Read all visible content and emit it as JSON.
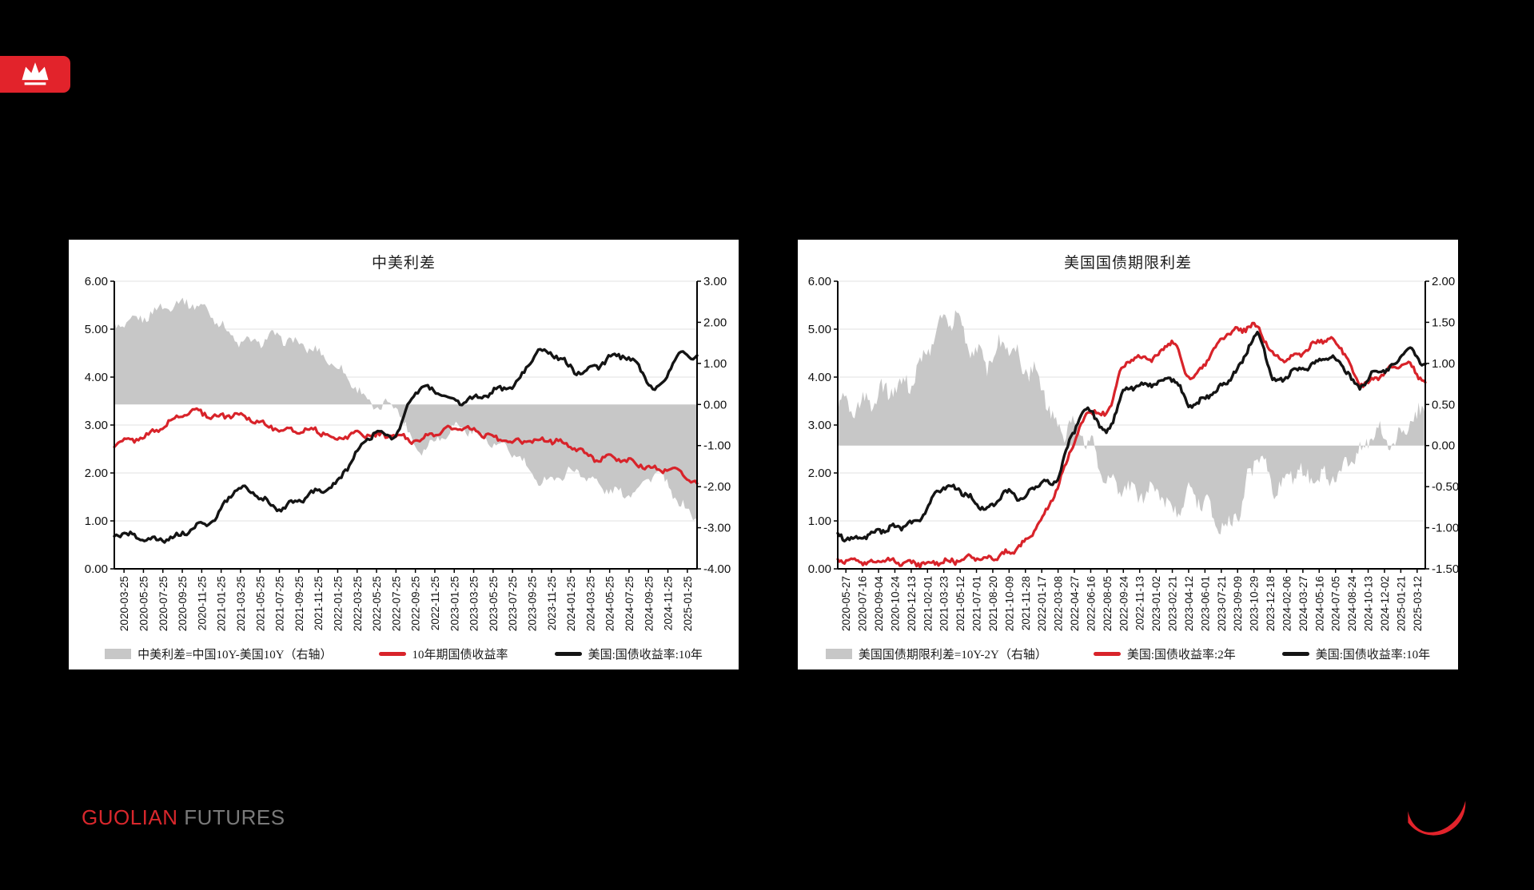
{
  "page": {
    "background": "#000000"
  },
  "colors": {
    "red": "#d8232a",
    "black": "#141414",
    "gray": "#c7c7c7",
    "grid": "#ebebeb",
    "axis": "#000000",
    "panel_bg": "#ffffff",
    "logo_red": "#e2232b",
    "brand_red": "#d8272c",
    "brand_gray": "#7a7a7a"
  },
  "header": {
    "logo": "crown-badge"
  },
  "footer": {
    "brand_primary": "GUOLIAN",
    "brand_secondary": "FUTURES"
  },
  "chart_data": [
    {
      "type": "line+area",
      "title": "中美利差",
      "grid": "horizontal",
      "legend_position": "bottom",
      "x_labels": [
        "2020-03-25",
        "2020-05-25",
        "2020-07-25",
        "2020-09-25",
        "2020-11-25",
        "2021-01-25",
        "2021-03-25",
        "2021-05-25",
        "2021-07-25",
        "2021-09-25",
        "2021-11-25",
        "2022-01-25",
        "2022-03-25",
        "2022-05-25",
        "2022-07-25",
        "2022-09-25",
        "2022-11-25",
        "2023-01-25",
        "2023-03-25",
        "2023-05-25",
        "2023-07-25",
        "2023-09-25",
        "2023-11-25",
        "2024-01-25",
        "2024-03-25",
        "2024-05-25",
        "2024-07-25",
        "2024-09-25",
        "2024-11-25",
        "2025-01-25"
      ],
      "left_axis": {
        "min": 0,
        "max": 6,
        "ticks": [
          "6.00",
          "5.00",
          "4.00",
          "3.00",
          "2.00",
          "1.00",
          "0.00"
        ]
      },
      "right_axis": {
        "min": -4,
        "max": 3,
        "ticks": [
          "3.00",
          "2.00",
          "1.00",
          "0.00",
          "-1.00",
          "-2.00",
          "-3.00",
          "-4.00"
        ]
      },
      "area_series": {
        "name": "中美利差=中国10Y-美国10Y（右轴）",
        "axis": "right",
        "color": "gray",
        "values": [
          1.9,
          2.02,
          2.26,
          2.45,
          2.44,
          2.12,
          1.59,
          1.52,
          1.65,
          1.5,
          1.3,
          0.95,
          0.44,
          -0.07,
          -0.02,
          -1.02,
          -0.87,
          -0.55,
          -0.71,
          -1.0,
          -1.22,
          -1.82,
          -1.78,
          -1.62,
          -1.92,
          -2.15,
          -2.06,
          -1.67,
          -2.32,
          -2.78
        ]
      },
      "line_series": [
        {
          "name": "10年期国债收益率",
          "axis": "left",
          "color": "red",
          "values": [
            2.62,
            2.7,
            2.86,
            3.12,
            3.3,
            3.17,
            3.22,
            3.1,
            2.93,
            2.88,
            2.9,
            2.72,
            2.82,
            2.78,
            2.78,
            2.68,
            2.83,
            2.93,
            2.86,
            2.72,
            2.64,
            2.68,
            2.67,
            2.5,
            2.3,
            2.31,
            2.19,
            2.07,
            2.05,
            1.78
          ]
        },
        {
          "name": "美国:国债收益率:10年",
          "axis": "left",
          "color": "black",
          "values": [
            0.72,
            0.68,
            0.6,
            0.67,
            0.86,
            1.05,
            1.63,
            1.58,
            1.28,
            1.38,
            1.6,
            1.77,
            2.38,
            2.85,
            2.8,
            3.7,
            3.7,
            3.48,
            3.57,
            3.72,
            3.86,
            4.5,
            4.45,
            4.12,
            4.22,
            4.46,
            4.25,
            3.74,
            4.4,
            4.45
          ]
        }
      ]
    },
    {
      "type": "line+area",
      "title": "美国国债期限利差",
      "grid": "horizontal",
      "legend_position": "bottom",
      "x_labels": [
        "2020-05-27",
        "2020-07-16",
        "2020-09-04",
        "2020-10-24",
        "2020-12-13",
        "2021-02-01",
        "2021-03-23",
        "2021-05-12",
        "2021-07-01",
        "2021-08-20",
        "2021-10-09",
        "2021-11-28",
        "2022-01-17",
        "2022-03-08",
        "2022-04-27",
        "2022-06-16",
        "2022-08-05",
        "2022-09-24",
        "2022-11-13",
        "2023-01-02",
        "2023-02-21",
        "2023-04-12",
        "2023-06-01",
        "2023-07-21",
        "2023-09-09",
        "2023-10-29",
        "2023-12-18",
        "2024-02-06",
        "2024-03-27",
        "2024-05-16",
        "2024-07-05",
        "2024-08-24",
        "2024-10-13",
        "2024-12-02",
        "2025-01-21",
        "2025-03-12"
      ],
      "left_axis": {
        "min": 0,
        "max": 6,
        "ticks": [
          "6.00",
          "5.00",
          "4.00",
          "3.00",
          "2.00",
          "1.00",
          "0.00"
        ]
      },
      "right_axis": {
        "min": -1.5,
        "max": 2,
        "ticks": [
          "2.00",
          "1.50",
          "1.00",
          "0.50",
          "0.00",
          "-0.50",
          "-1.00",
          "-1.50"
        ]
      },
      "area_series": {
        "name": "美国国债期限利差=10Y-2Y（右轴）",
        "axis": "right",
        "color": "gray",
        "values": [
          0.5,
          0.47,
          0.58,
          0.68,
          0.76,
          0.98,
          1.49,
          1.53,
          1.2,
          1.03,
          1.28,
          0.96,
          0.82,
          0.24,
          0.25,
          0.05,
          -0.4,
          -0.51,
          -0.58,
          -0.53,
          -0.78,
          -0.55,
          -0.74,
          -1.0,
          -0.72,
          -0.14,
          -0.51,
          -0.31,
          -0.39,
          -0.41,
          -0.32,
          -0.11,
          0.15,
          0.02,
          0.29,
          0.38
        ]
      },
      "line_series": [
        {
          "name": "美国:国债收益率:2年",
          "axis": "left",
          "color": "red",
          "values": [
            0.18,
            0.15,
            0.14,
            0.16,
            0.14,
            0.11,
            0.15,
            0.16,
            0.25,
            0.23,
            0.32,
            0.52,
            0.97,
            1.62,
            2.58,
            3.28,
            3.24,
            4.2,
            4.4,
            4.41,
            4.73,
            3.97,
            4.34,
            4.84,
            4.98,
            5.02,
            4.44,
            4.41,
            4.59,
            4.79,
            4.6,
            3.91,
            3.95,
            4.18,
            4.28,
            3.89
          ]
        },
        {
          "name": "美国:国债收益率:10年",
          "axis": "left",
          "color": "black",
          "values": [
            0.68,
            0.62,
            0.72,
            0.84,
            0.9,
            1.09,
            1.64,
            1.69,
            1.45,
            1.26,
            1.6,
            1.48,
            1.79,
            1.86,
            2.83,
            3.33,
            2.84,
            3.69,
            3.82,
            3.88,
            3.95,
            3.42,
            3.6,
            3.84,
            4.26,
            4.88,
            3.93,
            4.1,
            4.2,
            4.38,
            4.28,
            3.8,
            4.1,
            4.2,
            4.57,
            4.27
          ]
        }
      ]
    }
  ]
}
